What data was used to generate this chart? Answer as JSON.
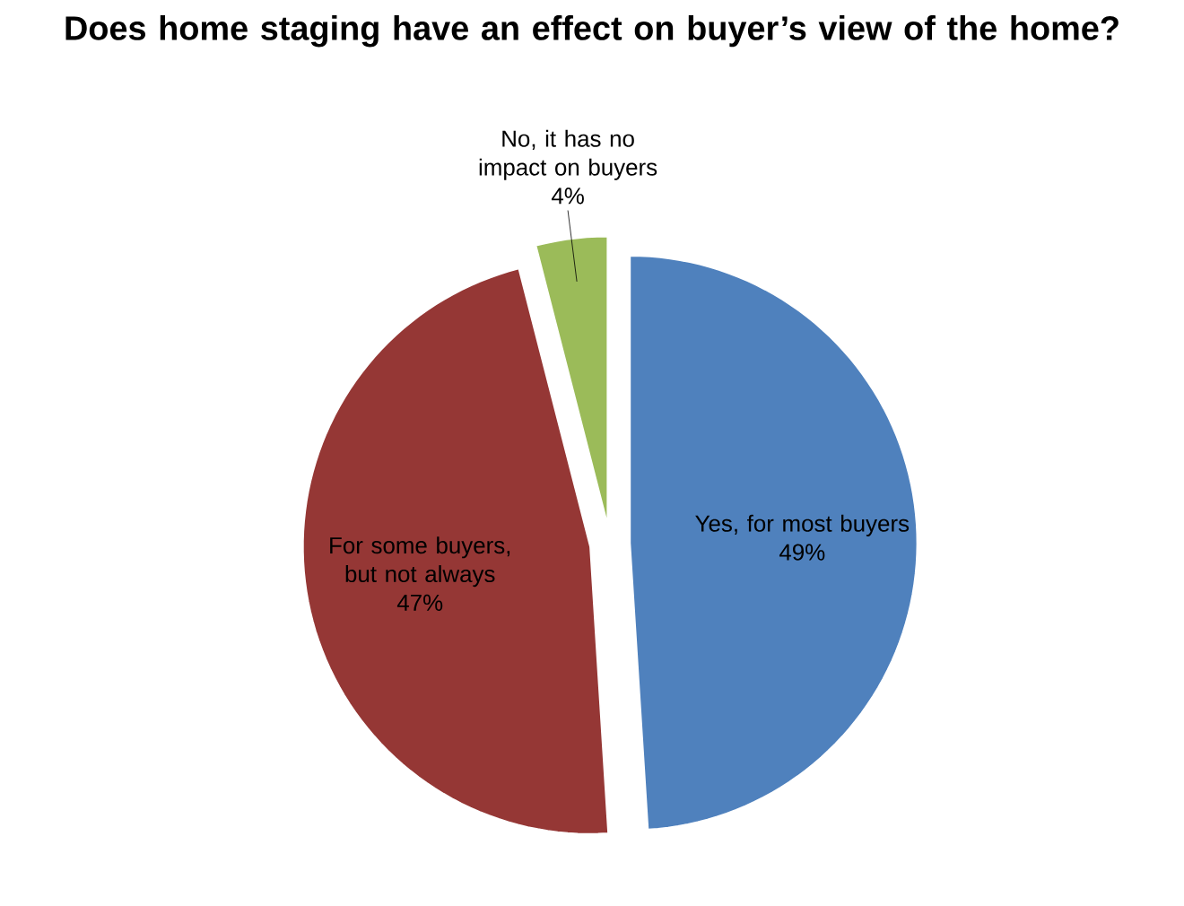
{
  "chart_data": {
    "type": "pie",
    "title": "Does home staging have an effect on buyer’s view of the home?",
    "categories": [
      "Yes, for most buyers",
      "For some buyers, but not always",
      "No, it has no impact on buyers"
    ],
    "values": [
      49,
      47,
      4
    ],
    "colors": [
      "#4f81bd",
      "#953735",
      "#9bbb59"
    ],
    "value_labels": [
      "49%",
      "47%",
      "4%"
    ]
  }
}
